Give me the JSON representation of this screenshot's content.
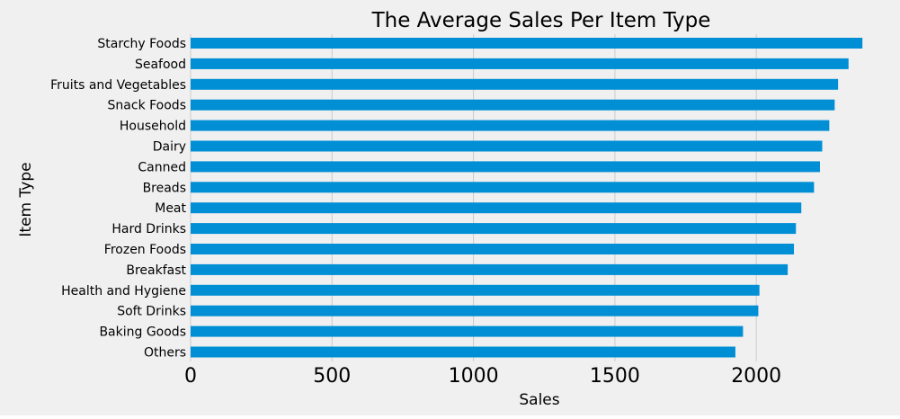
{
  "colors": {
    "background": "#f0f0f0",
    "bar": "#008fd5",
    "grid": "#cbcbcb",
    "text": "#000000"
  },
  "chart_data": {
    "type": "bar",
    "orientation": "horizontal",
    "title": "The Average Sales Per Item Type",
    "xlabel": "Sales",
    "ylabel": "Item Type",
    "xlim": [
      0,
      2400
    ],
    "xticks": [
      0,
      500,
      1000,
      1500,
      2000
    ],
    "grid": "x",
    "legend": "none",
    "categories": [
      "Starchy Foods",
      "Seafood",
      "Fruits and Vegetables",
      "Snack Foods",
      "Household",
      "Dairy",
      "Canned",
      "Breads",
      "Meat",
      "Hard Drinks",
      "Frozen Foods",
      "Breakfast",
      "Health and Hygiene",
      "Soft Drinks",
      "Baking Goods",
      "Others"
    ],
    "values": [
      2375,
      2326,
      2289,
      2277,
      2258,
      2233,
      2225,
      2204,
      2159,
      2140,
      2133,
      2111,
      2011,
      2007,
      1953,
      1926
    ]
  }
}
